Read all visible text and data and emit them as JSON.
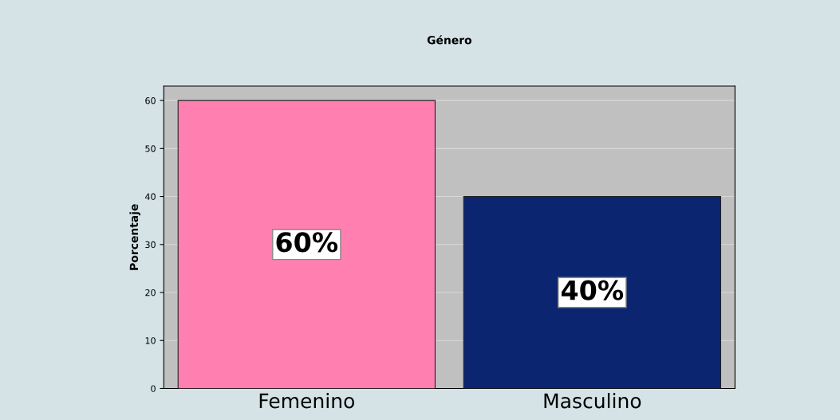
{
  "chart_data": {
    "type": "bar",
    "title": "Género",
    "ylabel": "Porcentaje",
    "categories": [
      "Femenino",
      "Masculino"
    ],
    "values": [
      60,
      40
    ],
    "colors": [
      "#ff80b0",
      "#0c2570"
    ],
    "value_labels": [
      "60%",
      "40%"
    ],
    "ylim": [
      0,
      63
    ],
    "yticks": [
      0,
      10,
      20,
      30,
      40,
      50,
      60
    ],
    "grid": "y",
    "legend": false
  }
}
